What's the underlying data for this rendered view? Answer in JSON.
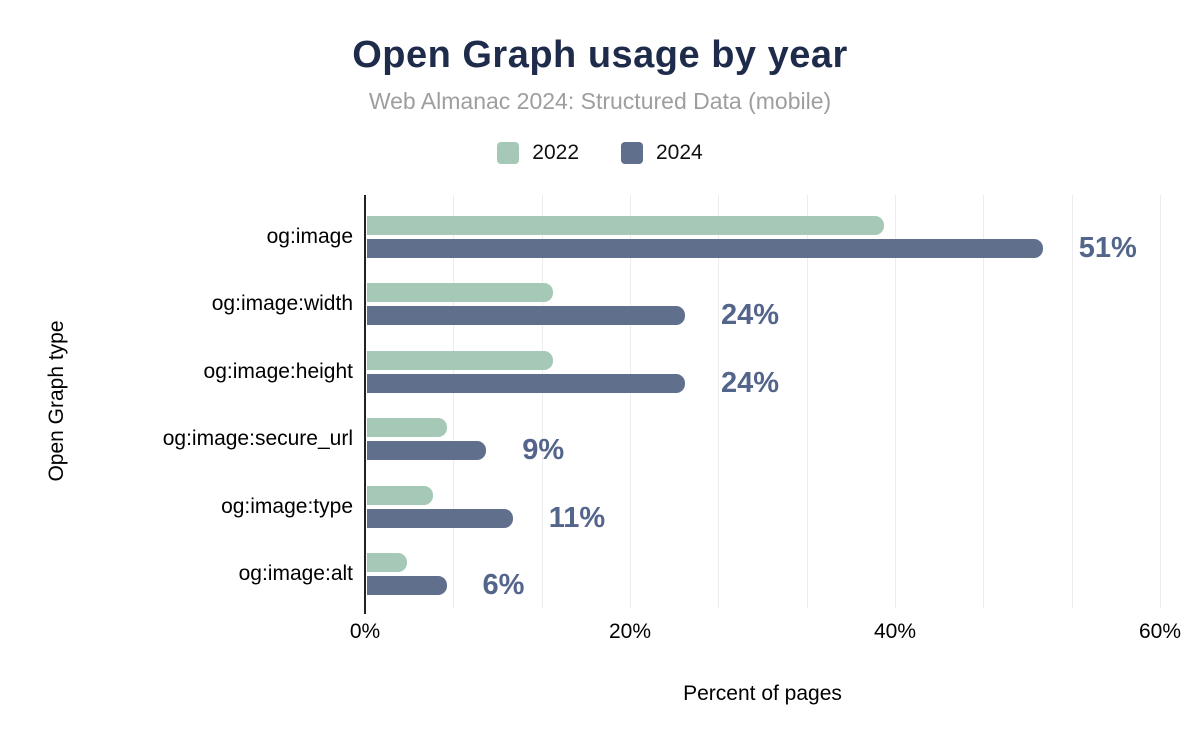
{
  "header": {
    "title": "Open Graph usage by year",
    "subtitle": "Web Almanac 2024: Structured Data (mobile)"
  },
  "chart_data": {
    "type": "bar",
    "orientation": "horizontal",
    "title": "Open Graph usage by year",
    "subtitle": "Web Almanac 2024: Structured Data (mobile)",
    "xlabel": "Percent of pages",
    "ylabel": "Open Graph type",
    "xlim": [
      0,
      60
    ],
    "categories": [
      "og:image",
      "og:image:width",
      "og:image:height",
      "og:image:secure_url",
      "og:image:type",
      "og:image:alt"
    ],
    "series": [
      {
        "name": "2022",
        "color": "#a5c9b6",
        "values": [
          39,
          14,
          14,
          6,
          5,
          3
        ]
      },
      {
        "name": "2024",
        "color": "#5f6f8c",
        "values": [
          51,
          24,
          24,
          9,
          11,
          6
        ],
        "value_labels": [
          "51%",
          "24%",
          "24%",
          "9%",
          "11%",
          "6%"
        ]
      }
    ],
    "x_ticks": [
      {
        "value": 0,
        "label": "0%"
      },
      {
        "value": 20,
        "label": "20%"
      },
      {
        "value": 40,
        "label": "40%"
      },
      {
        "value": 60,
        "label": "60%"
      }
    ],
    "grid": {
      "minor_step_pct": 6.6667,
      "color": "#ececec",
      "gridlines_on": true
    },
    "legend_position": "top"
  },
  "colors": {
    "title": "#1e2b4a",
    "subtitle": "#9e9e9e",
    "value_label": "#53658a",
    "axis_line": "#222222"
  }
}
